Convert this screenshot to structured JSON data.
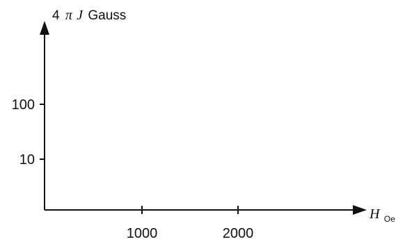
{
  "chart_data": {
    "type": "line",
    "title": "",
    "xlabel": {
      "main": "H",
      "sub": "Oe"
    },
    "ylabel": {
      "prefix": "4",
      "pi": "π",
      "symbol": "J",
      "unit": "Gauss"
    },
    "x_ticks": [
      {
        "value": 1000,
        "label": "1000"
      },
      {
        "value": 2000,
        "label": "2000"
      }
    ],
    "y_ticks": [
      {
        "value": 10,
        "label": "10"
      },
      {
        "value": 100,
        "label": "100"
      }
    ],
    "x_scale": "linear",
    "y_scale": "log",
    "grid": false,
    "legend": "none",
    "series": []
  },
  "colors": {
    "axis": "#111111",
    "background": "#ffffff"
  }
}
